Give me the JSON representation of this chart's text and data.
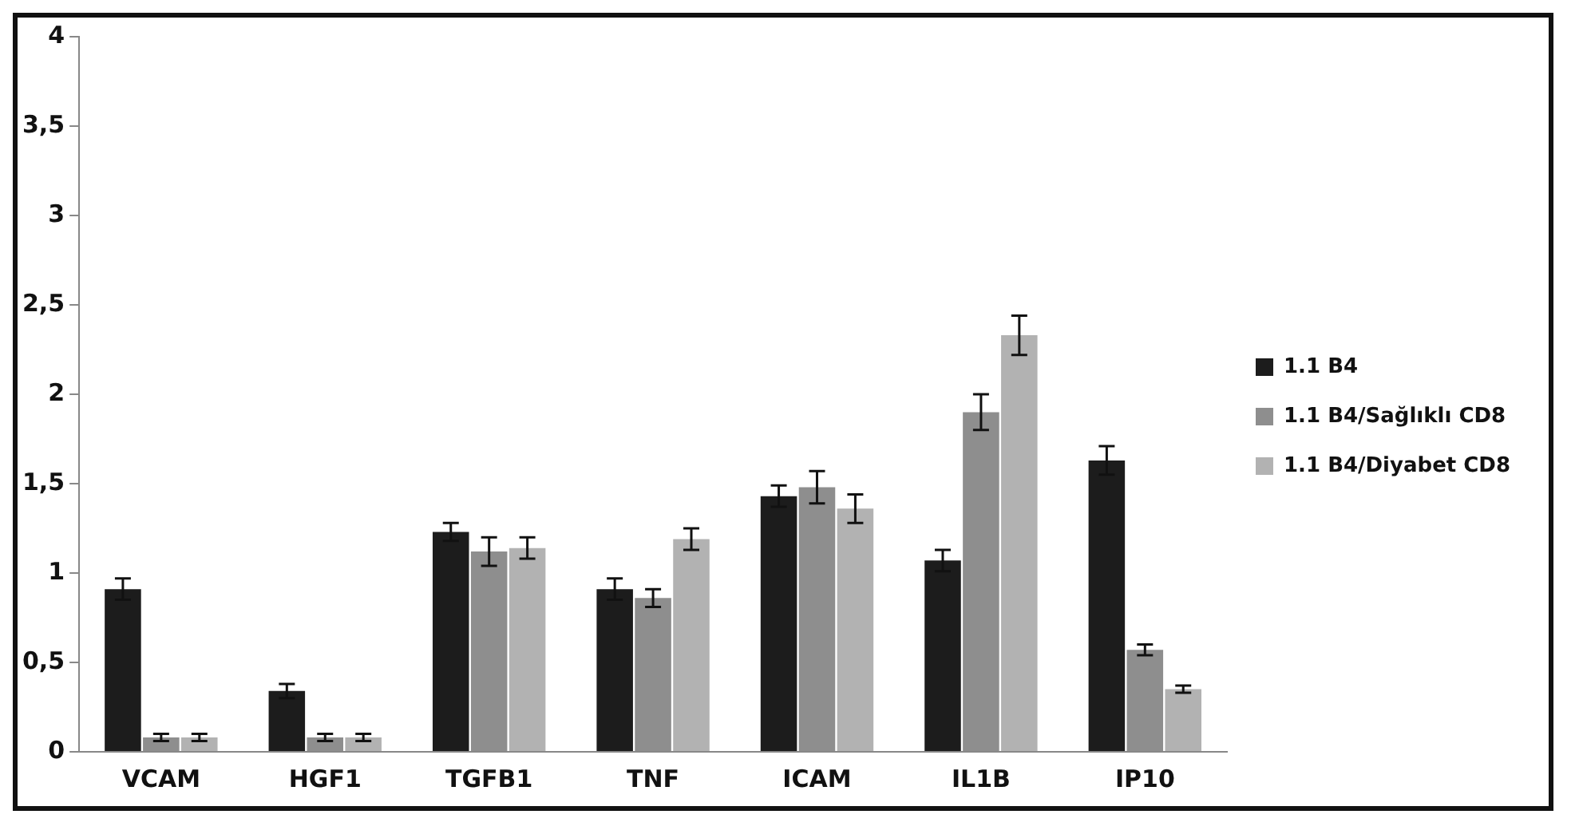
{
  "chart_data": {
    "type": "bar",
    "categories": [
      "VCAM",
      "HGF1",
      "TGFB1",
      "TNF",
      "ICAM",
      "IL1B",
      "IP10"
    ],
    "series": [
      {
        "name": "1.1 B4",
        "color": "#1c1c1c",
        "values": [
          0.91,
          0.34,
          1.23,
          0.91,
          1.43,
          1.07,
          1.63
        ],
        "errors": [
          0.06,
          0.04,
          0.05,
          0.06,
          0.06,
          0.06,
          0.08
        ]
      },
      {
        "name": "1.1 B4/Sağlıklı CD8",
        "color": "#8e8e8e",
        "values": [
          0.08,
          0.08,
          1.12,
          0.86,
          1.48,
          1.9,
          0.57
        ],
        "errors": [
          0.02,
          0.02,
          0.08,
          0.05,
          0.09,
          0.1,
          0.03
        ]
      },
      {
        "name": "1.1 B4/Diyabet CD8",
        "color": "#b2b2b2",
        "values": [
          0.08,
          0.08,
          1.14,
          1.19,
          1.36,
          2.33,
          0.35
        ],
        "errors": [
          0.02,
          0.02,
          0.06,
          0.06,
          0.08,
          0.11,
          0.02
        ]
      }
    ],
    "ylim": [
      0,
      4
    ],
    "yticks": [
      0,
      {
        "value": 0.5,
        "label": "0,5"
      },
      1,
      {
        "value": 1.5,
        "label": "1,5"
      },
      2,
      {
        "value": 2.5,
        "label": "2,5"
      },
      3,
      {
        "value": 3.5,
        "label": "3,5"
      },
      4
    ],
    "grid": false,
    "legend": "right"
  }
}
